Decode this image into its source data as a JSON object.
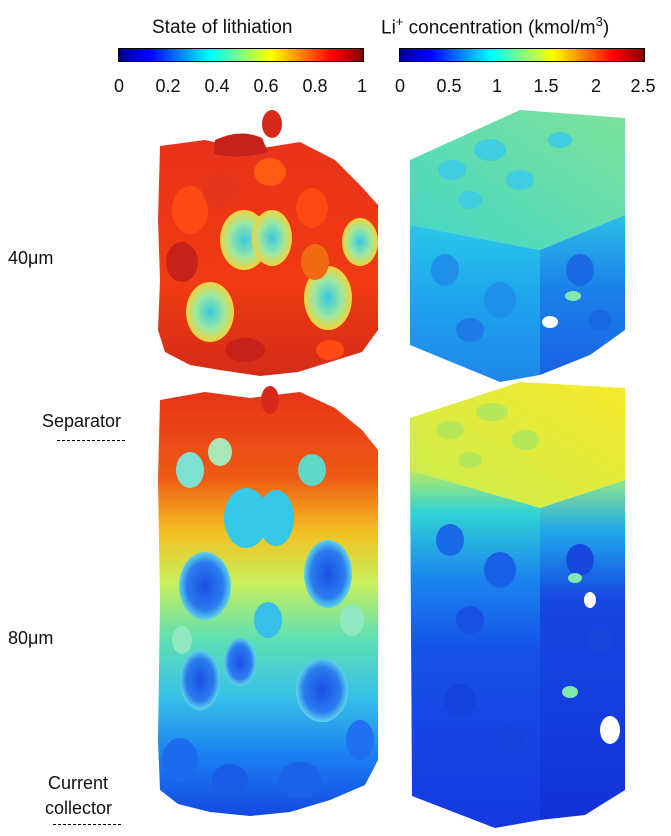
{
  "colorbars": {
    "lithiation": {
      "title": "State of lithiation",
      "ticks": [
        "0",
        "0.2",
        "0.4",
        "0.6",
        "0.8",
        "1"
      ]
    },
    "concentration": {
      "title_prefix": "Li",
      "title_sup": "+",
      "title_rest": " concentration (kmol/m",
      "title_unit_sup": "3",
      "title_close": ")",
      "ticks": [
        "0",
        "0.5",
        "1",
        "1.5",
        "2",
        "2.5"
      ]
    }
  },
  "rows": {
    "thin": {
      "label": "40μm"
    },
    "thick": {
      "label": "80μm"
    }
  },
  "annotations": {
    "separator": "Separator",
    "current_collector_line1": "Current",
    "current_collector_line2": "collector"
  },
  "colors": {
    "jet": [
      "#00007f",
      "#0000ff",
      "#007fff",
      "#00ffff",
      "#7fff7f",
      "#ffff00",
      "#ff7f00",
      "#ff0000",
      "#7f0000"
    ]
  }
}
